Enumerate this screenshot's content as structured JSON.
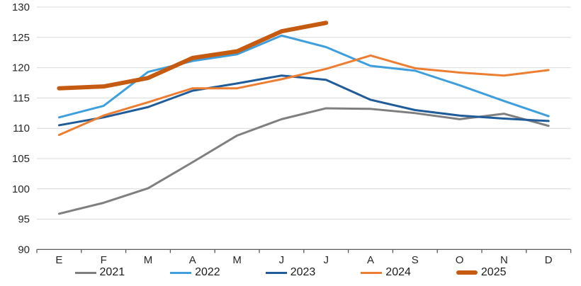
{
  "chart_data": {
    "type": "line",
    "title": "",
    "x_labels": [
      "E",
      "F",
      "M",
      "A",
      "M",
      "J",
      "J",
      "A",
      "S",
      "O",
      "N",
      "D"
    ],
    "y_ticks": [
      130,
      125,
      120,
      115,
      110,
      105,
      100,
      95,
      90
    ],
    "ylim": [
      90,
      130
    ],
    "grid": "horizontal-light-gray",
    "legend_position": "bottom-center",
    "colors": {
      "gridline": "#d9d9d9",
      "axis": "#595959",
      "tick_text": "#262626"
    },
    "series": [
      {
        "name": "2021",
        "color": "#7f7f7f",
        "stroke_width": 3,
        "values": [
          95.9,
          97.7,
          100.1,
          104.4,
          108.8,
          111.5,
          113.3,
          113.2,
          112.5,
          111.5,
          112.4,
          110.4
        ]
      },
      {
        "name": "2022",
        "color": "#3f9fdc",
        "stroke_width": 3,
        "values": [
          111.8,
          113.7,
          119.3,
          121.1,
          122.2,
          125.3,
          123.4,
          120.3,
          119.5,
          117.1,
          114.5,
          112.0
        ]
      },
      {
        "name": "2023",
        "color": "#1f5c99",
        "stroke_width": 3,
        "values": [
          110.5,
          111.8,
          113.5,
          116.2,
          117.4,
          118.7,
          118.0,
          114.7,
          113.0,
          112.1,
          111.6,
          111.2
        ]
      },
      {
        "name": "2024",
        "color": "#ed7d31",
        "stroke_width": 3,
        "values": [
          108.9,
          112.1,
          114.3,
          116.6,
          116.6,
          118.1,
          119.8,
          122.0,
          119.9,
          119.2,
          118.7,
          119.6
        ]
      },
      {
        "name": "2025",
        "color": "#c55a11",
        "stroke_width": 6,
        "values": [
          116.6,
          116.9,
          118.3,
          121.6,
          122.7,
          126.0,
          127.4,
          null,
          null,
          null,
          null,
          null
        ]
      }
    ]
  }
}
